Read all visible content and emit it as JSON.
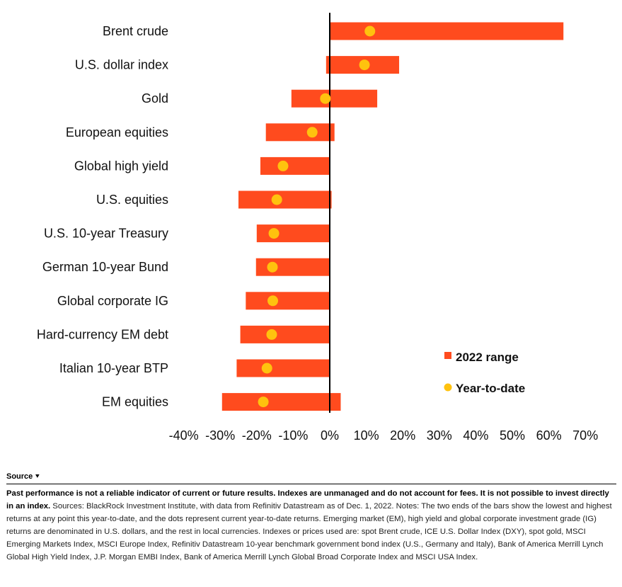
{
  "chart_data": {
    "type": "bar",
    "subtype": "floating-range-with-dots",
    "categories": [
      "Brent crude",
      "U.S. dollar index",
      "Gold",
      "European equities",
      "Global high yield",
      "U.S. equities",
      "U.S. 10-year Treasury",
      "German 10-year Bund",
      "Global corporate IG",
      "Hard-currency EM debt",
      "Italian 10-year BTP",
      "EM equities"
    ],
    "series": [
      {
        "name": "2022 range",
        "low": [
          0,
          -1,
          -10.5,
          -17.5,
          -19,
          -25,
          -20,
          -20.2,
          -23,
          -24.5,
          -25.5,
          -29.5
        ],
        "high": [
          64,
          19,
          13,
          1.3,
          0,
          0.5,
          0,
          0,
          0,
          0,
          0,
          3
        ]
      },
      {
        "name": "Year-to-date",
        "values": [
          11,
          9.5,
          -1.2,
          -4.8,
          -12.8,
          -14.5,
          -15.3,
          -15.7,
          -15.6,
          -15.9,
          -17.2,
          -18.2
        ]
      }
    ],
    "x_ticks": [
      "-40%",
      "-30%",
      "-20%",
      "-10%",
      "0%",
      "10%",
      "20%",
      "30%",
      "40%",
      "50%",
      "60%",
      "70%"
    ],
    "xlim": [
      -40,
      70
    ],
    "grid": false,
    "legend_position": "bottom-right",
    "colors": {
      "range": "#ff4b1e",
      "dot": "#ffc20e",
      "zero_line": "#000000"
    }
  },
  "source": {
    "heading": "Source",
    "bold_text": "Past performance is not a reliable indicator of current or future results. Indexes are unmanaged and do not account for fees. It is not possible to invest directly in an index.",
    "body_text": " Sources: BlackRock Investment Institute, with data from Refinitiv Datastream as of  Dec. 1, 2022. Notes: The two ends of the bars show the lowest and highest returns at any point this year-to-date, and the dots represent current year-to-date returns. Emerging market (EM), high yield and global corporate investment grade (IG) returns are denominated in U.S. dollars, and the rest in local currencies. Indexes or prices used are: spot Brent crude, ICE U.S. Dollar Index (DXY), spot gold, MSCI Emerging Markets Index, MSCI Europe Index, Refinitiv Datastream 10-year benchmark government bond index (U.S., Germany and Italy), Bank of America Merrill Lynch Global High Yield Index, J.P. Morgan EMBI Index, Bank of America Merrill Lynch Global Broad Corporate Index and MSCI USA Index."
  }
}
